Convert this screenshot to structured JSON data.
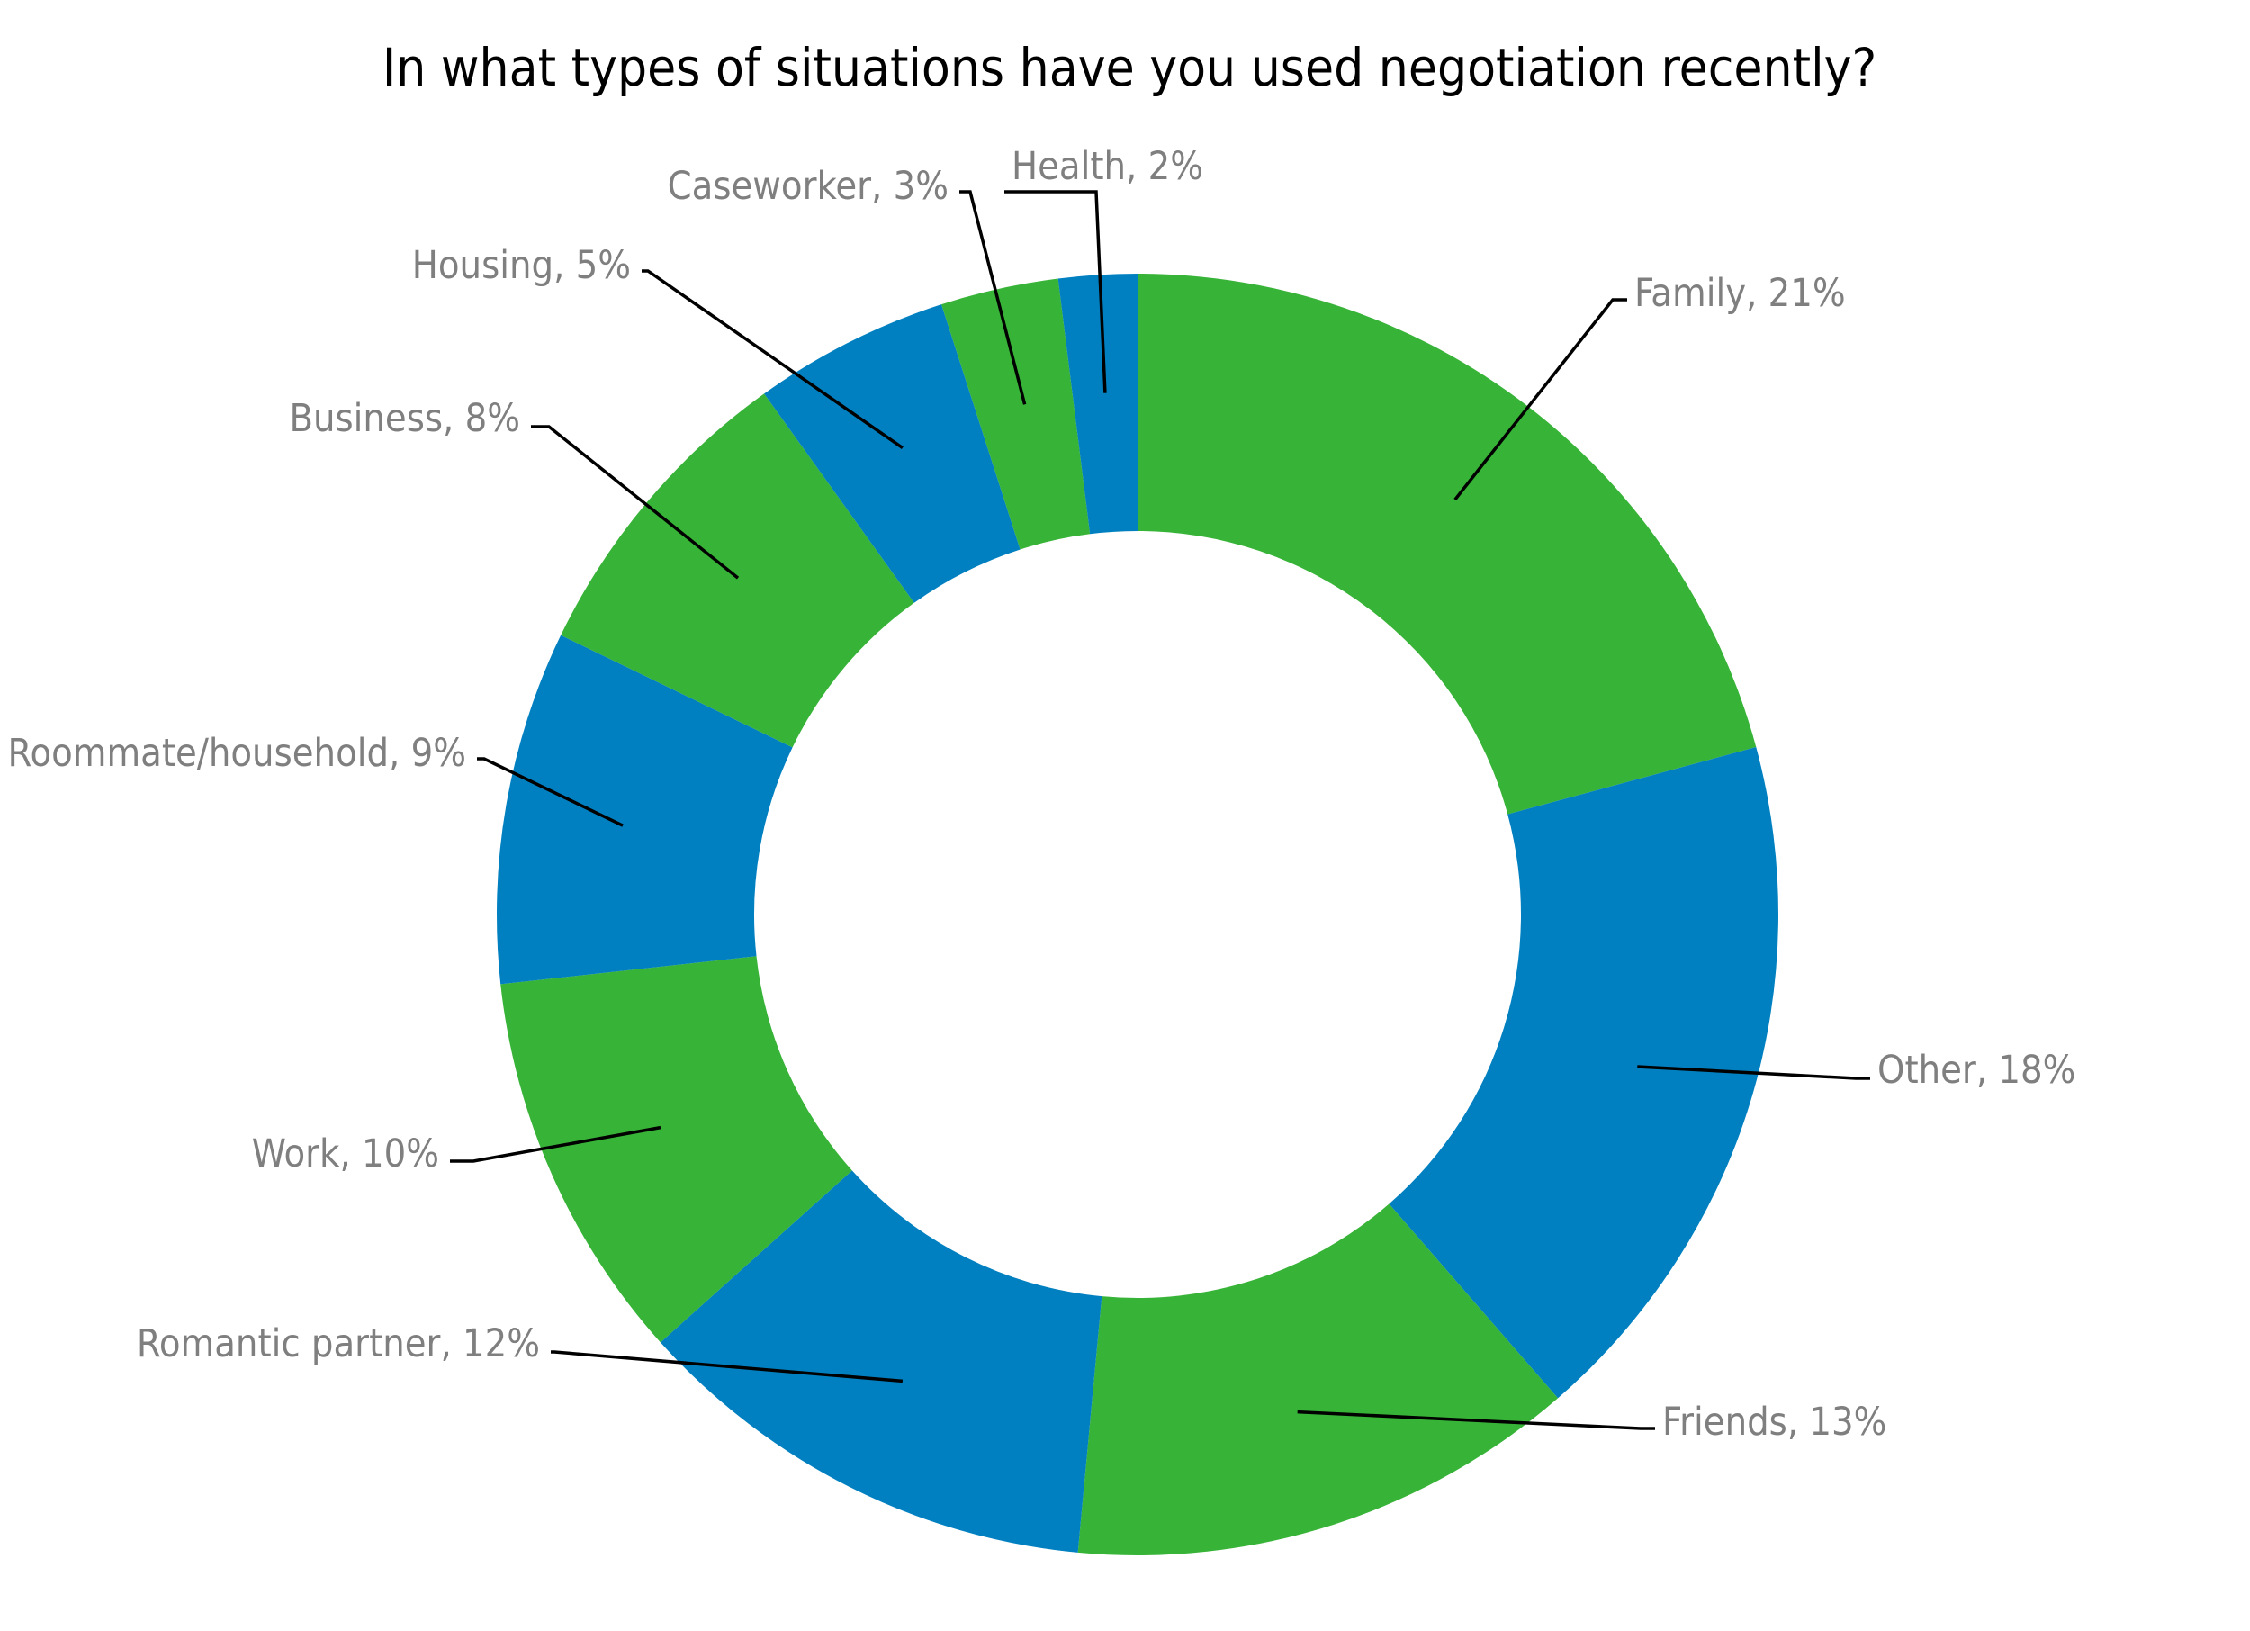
{
  "chart_data": {
    "type": "pie",
    "title": "In what types of situations have you used negotiation recently?",
    "slices": [
      {
        "name": "Family",
        "value": 21,
        "label": "Family, 21%",
        "color": "#37b337"
      },
      {
        "name": "Other",
        "value": 18,
        "label": "Other, 18%",
        "color": "#0080c0"
      },
      {
        "name": "Friends",
        "value": 13,
        "label": "Friends, 13%",
        "color": "#37b337"
      },
      {
        "name": "Romantic partner",
        "value": 12,
        "label": "Romantic partner, 12%",
        "color": "#0080c0"
      },
      {
        "name": "Work",
        "value": 10,
        "label": "Work, 10%",
        "color": "#37b337"
      },
      {
        "name": "Roommate/household",
        "value": 9,
        "label": "Roommate/household, 9%",
        "color": "#0080c0"
      },
      {
        "name": "Business",
        "value": 8,
        "label": "Business, 8%",
        "color": "#37b337"
      },
      {
        "name": "Housing",
        "value": 5,
        "label": "Housing, 5%",
        "color": "#0080c0"
      },
      {
        "name": "Caseworker",
        "value": 3,
        "label": "Caseworker, 3%",
        "color": "#37b337"
      },
      {
        "name": "Health",
        "value": 2,
        "label": "Health, 2%",
        "color": "#0080c0"
      }
    ]
  }
}
